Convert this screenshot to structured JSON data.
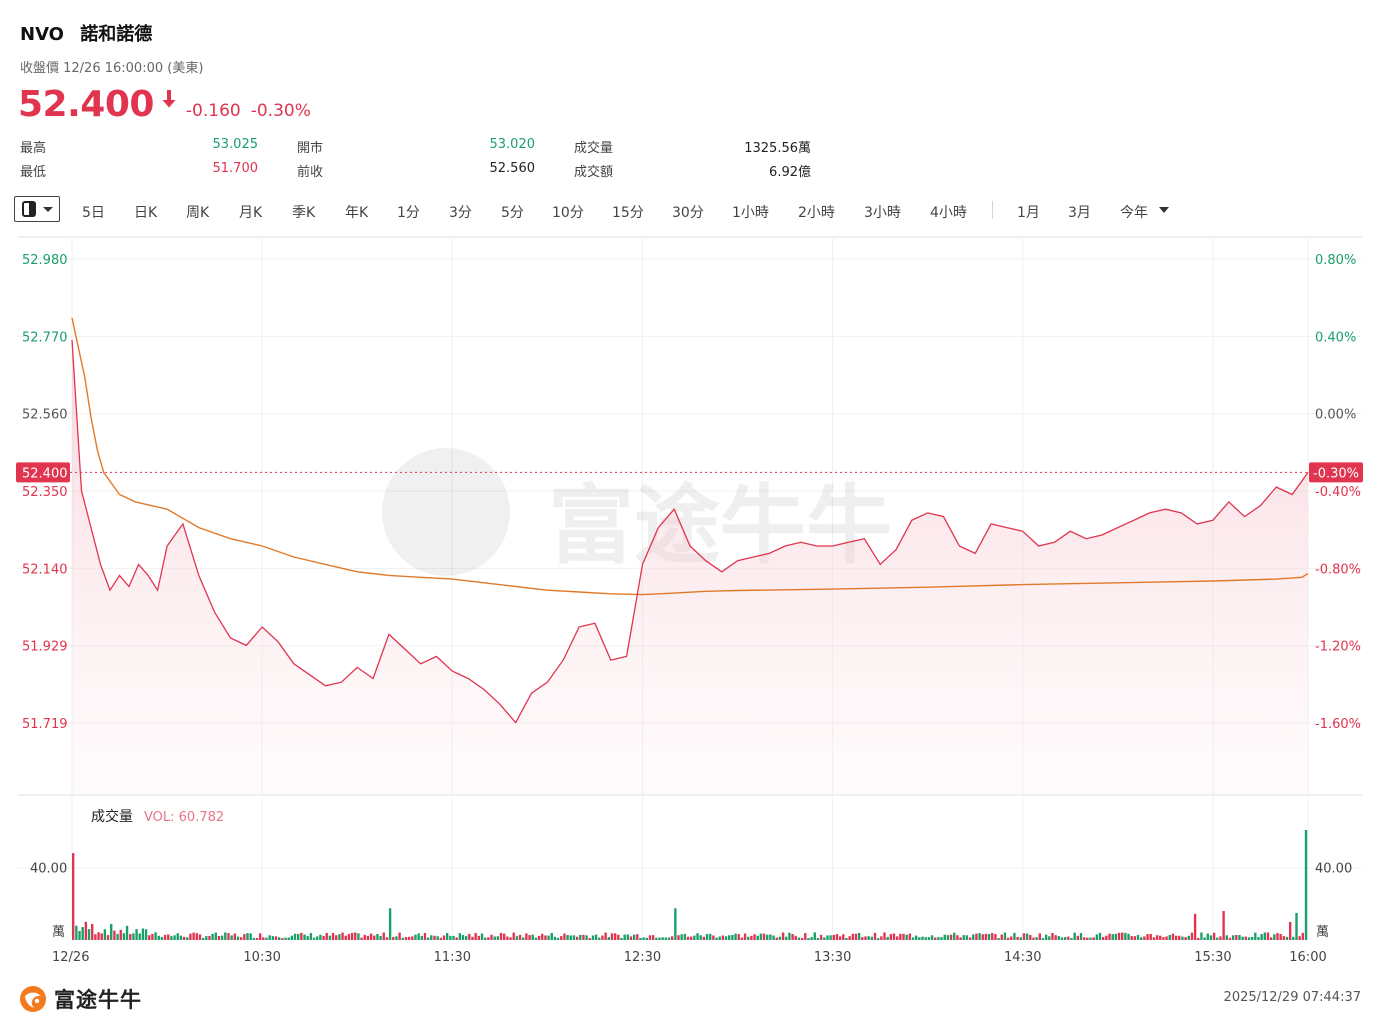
{
  "header": {
    "symbol": "NVO",
    "name": "諾和諾德",
    "status": "收盤價 12/26 16:00:00 (美東)",
    "price": "52.400",
    "change": "-0.160",
    "change_pct": "-0.30%"
  },
  "stats": [
    {
      "label": "最高",
      "value": "53.025",
      "color": "green"
    },
    {
      "label": "開市",
      "value": "53.020",
      "color": "green"
    },
    {
      "label": "成交量",
      "value": "1325.56萬",
      "color": "dark"
    },
    {
      "label": "最低",
      "value": "51.700",
      "color": "red"
    },
    {
      "label": "前收",
      "value": "52.560",
      "color": "dark"
    },
    {
      "label": "成交額",
      "value": "6.92億",
      "color": "dark"
    }
  ],
  "toolbar": {
    "mode_icon": "candle-mode-icon",
    "periods": [
      "5日",
      "日K",
      "周K",
      "月K",
      "季K",
      "年K",
      "1分",
      "3分",
      "5分",
      "10分",
      "15分",
      "30分",
      "1小時",
      "2小時",
      "3小時",
      "4小時"
    ],
    "ranges": [
      "1月",
      "3月",
      "今年"
    ]
  },
  "watermark": "富途牛牛",
  "footer": {
    "logo_text": "富途牛牛",
    "timestamp": "2025/12/29 07:44:37"
  },
  "colors": {
    "up": "#1a9f6a",
    "down": "#e0344f",
    "avg_line": "#e07a2a",
    "grid": "#eeeeee"
  },
  "chart_data": [
    {
      "type": "line",
      "series": [
        {
          "name": "price",
          "x": [
            "09:30",
            "09:33",
            "09:36",
            "09:39",
            "09:42",
            "09:45",
            "09:48",
            "09:51",
            "09:54",
            "09:57",
            "10:00",
            "10:05",
            "10:10",
            "10:15",
            "10:20",
            "10:25",
            "10:30",
            "10:35",
            "10:40",
            "10:45",
            "10:50",
            "10:55",
            "11:00",
            "11:05",
            "11:10",
            "11:15",
            "11:20",
            "11:25",
            "11:30",
            "11:35",
            "11:40",
            "11:45",
            "11:50",
            "11:55",
            "12:00",
            "12:05",
            "12:10",
            "12:15",
            "12:20",
            "12:25",
            "12:30",
            "12:35",
            "12:40",
            "12:45",
            "12:50",
            "12:55",
            "13:00",
            "13:05",
            "13:10",
            "13:15",
            "13:20",
            "13:25",
            "13:30",
            "13:35",
            "13:40",
            "13:45",
            "13:50",
            "13:55",
            "14:00",
            "14:05",
            "14:10",
            "14:15",
            "14:20",
            "14:25",
            "14:30",
            "14:35",
            "14:40",
            "14:45",
            "14:50",
            "14:55",
            "15:00",
            "15:05",
            "15:10",
            "15:15",
            "15:20",
            "15:25",
            "15:30",
            "15:35",
            "15:40",
            "15:45",
            "15:50",
            "15:55",
            "16:00"
          ],
          "values": [
            52.76,
            52.35,
            52.25,
            52.15,
            52.08,
            52.12,
            52.09,
            52.15,
            52.12,
            52.08,
            52.2,
            52.26,
            52.12,
            52.02,
            51.95,
            51.93,
            51.98,
            51.94,
            51.88,
            51.85,
            51.82,
            51.83,
            51.87,
            51.84,
            51.96,
            51.92,
            51.88,
            51.9,
            51.86,
            51.84,
            51.81,
            51.77,
            51.72,
            51.8,
            51.83,
            51.89,
            51.98,
            51.99,
            51.89,
            51.9,
            52.15,
            52.25,
            52.3,
            52.2,
            52.16,
            52.13,
            52.16,
            52.17,
            52.18,
            52.2,
            52.21,
            52.2,
            52.2,
            52.21,
            52.22,
            52.15,
            52.19,
            52.27,
            52.29,
            52.28,
            52.2,
            52.18,
            52.26,
            52.25,
            52.24,
            52.2,
            52.21,
            52.24,
            52.22,
            52.23,
            52.25,
            52.27,
            52.29,
            52.3,
            52.29,
            52.26,
            52.27,
            52.32,
            52.28,
            52.31,
            52.36,
            52.34,
            52.4
          ]
        },
        {
          "name": "average",
          "x": [
            "09:30",
            "09:32",
            "09:34",
            "09:36",
            "09:38",
            "09:40",
            "09:45",
            "09:50",
            "10:00",
            "10:10",
            "10:20",
            "10:30",
            "10:40",
            "10:50",
            "11:00",
            "11:10",
            "11:20",
            "11:30",
            "11:40",
            "11:50",
            "12:00",
            "12:10",
            "12:20",
            "12:30",
            "12:40",
            "12:50",
            "13:00",
            "13:30",
            "14:00",
            "14:30",
            "15:00",
            "15:30",
            "15:50",
            "15:58",
            "16:00"
          ],
          "values": [
            52.82,
            52.74,
            52.66,
            52.55,
            52.46,
            52.4,
            52.34,
            52.32,
            52.3,
            52.25,
            52.22,
            52.2,
            52.17,
            52.15,
            52.13,
            52.12,
            52.115,
            52.11,
            52.1,
            52.09,
            52.08,
            52.075,
            52.07,
            52.068,
            52.072,
            52.077,
            52.079,
            52.083,
            52.088,
            52.095,
            52.1,
            52.105,
            52.11,
            52.115,
            52.125
          ]
        }
      ],
      "y_ticks_left": [
        "52.980",
        "52.770",
        "52.560",
        "52.350",
        "52.140",
        "51.929",
        "51.719"
      ],
      "y_ticks_right": [
        "0.80%",
        "0.40%",
        "0.00%",
        "-0.40%",
        "-0.80%",
        "-1.20%",
        "-1.60%"
      ],
      "ylim": [
        51.51,
        53.085
      ],
      "prev_close": 52.56,
      "last_price_tag": "52.400",
      "last_pct_tag": "-0.30%",
      "x_ticks": [
        "12/26",
        "10:30",
        "11:30",
        "12:30",
        "13:30",
        "14:30",
        "15:30",
        "16:00"
      ],
      "grid": true
    },
    {
      "type": "bar",
      "label": "成交量",
      "indicator": "VOL: 60.782",
      "y_tick": "40.00",
      "unit": "萬",
      "ylim": [
        0,
        60.782
      ]
    }
  ]
}
